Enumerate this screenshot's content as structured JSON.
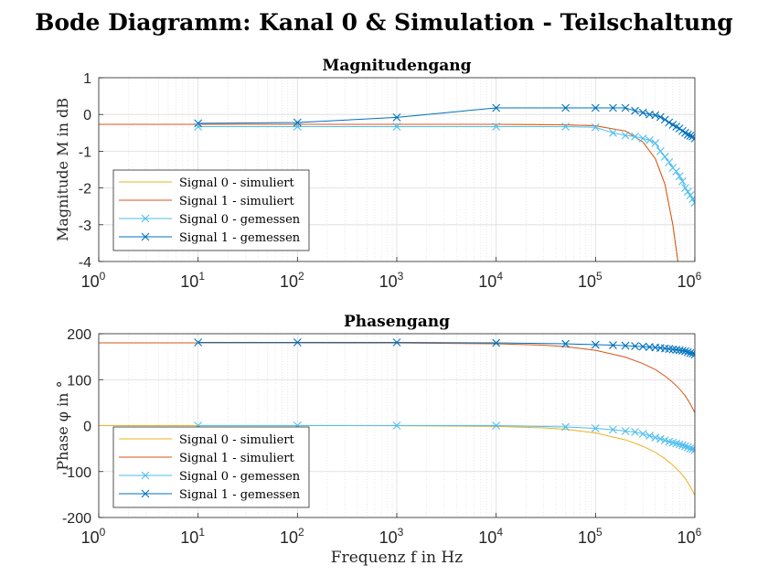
{
  "figure": {
    "title": "Bode Diagramm: Kanal 0 & Simulation - Teilschaltung"
  },
  "chart_data": [
    {
      "type": "line",
      "title": "Magnitudengang",
      "xlabel": "",
      "ylabel": "Magnitude M in dB",
      "xscale": "log",
      "xlim": [
        1,
        1000000
      ],
      "ylim": [
        -4,
        1
      ],
      "grid": true,
      "xticks": [
        "10^0",
        "10^1",
        "10^2",
        "10^3",
        "10^4",
        "10^5",
        "10^6"
      ],
      "yticks": [
        "1",
        "0",
        "-1",
        "-2",
        "-3",
        "-4"
      ],
      "legend_position": "bottom-left",
      "series": [
        {
          "name": "Signal 0 - simuliert",
          "color": "#EDB120",
          "marker": "none",
          "points": [
            [
              1,
              -0.27
            ],
            [
              100,
              -0.27
            ],
            [
              10000,
              -0.27
            ],
            [
              50000,
              -0.28
            ],
            [
              100000,
              -0.31
            ],
            [
              200000,
              -0.45
            ],
            [
              300000,
              -0.75
            ],
            [
              400000,
              -1.2
            ],
            [
              500000,
              -1.9
            ],
            [
              600000,
              -3.0
            ],
            [
              700000,
              -4.3
            ]
          ]
        },
        {
          "name": "Signal 1 - simuliert",
          "color": "#D95319",
          "marker": "none",
          "points": [
            [
              1,
              -0.27
            ],
            [
              100,
              -0.27
            ],
            [
              10000,
              -0.27
            ],
            [
              50000,
              -0.28
            ],
            [
              100000,
              -0.31
            ],
            [
              200000,
              -0.45
            ],
            [
              300000,
              -0.75
            ],
            [
              400000,
              -1.2
            ],
            [
              500000,
              -1.9
            ],
            [
              600000,
              -3.0
            ],
            [
              700000,
              -4.3
            ]
          ]
        },
        {
          "name": "Signal 0 - gemessen",
          "color": "#4DBEEE",
          "marker": "x",
          "points": [
            [
              10,
              -0.33
            ],
            [
              100,
              -0.33
            ],
            [
              1000,
              -0.33
            ],
            [
              10000,
              -0.33
            ],
            [
              50000,
              -0.33
            ],
            [
              100000,
              -0.35
            ],
            [
              150000,
              -0.5
            ],
            [
              200000,
              -0.57
            ],
            [
              250000,
              -0.6
            ],
            [
              300000,
              -0.65
            ],
            [
              350000,
              -0.7
            ],
            [
              400000,
              -0.78
            ],
            [
              450000,
              -1.0
            ],
            [
              500000,
              -1.15
            ],
            [
              550000,
              -1.3
            ],
            [
              600000,
              -1.45
            ],
            [
              650000,
              -1.55
            ],
            [
              700000,
              -1.68
            ],
            [
              750000,
              -1.82
            ],
            [
              800000,
              -2.0
            ],
            [
              850000,
              -2.1
            ],
            [
              900000,
              -2.2
            ],
            [
              950000,
              -2.3
            ],
            [
              1000000,
              -2.4
            ]
          ]
        },
        {
          "name": "Signal 1 - gemessen",
          "color": "#0072BD",
          "marker": "x",
          "points": [
            [
              10,
              -0.24
            ],
            [
              100,
              -0.22
            ],
            [
              1000,
              -0.08
            ],
            [
              10000,
              0.18
            ],
            [
              50000,
              0.18
            ],
            [
              100000,
              0.18
            ],
            [
              150000,
              0.18
            ],
            [
              200000,
              0.18
            ],
            [
              250000,
              0.1
            ],
            [
              300000,
              0.05
            ],
            [
              350000,
              0.0
            ],
            [
              400000,
              -0.02
            ],
            [
              450000,
              -0.07
            ],
            [
              500000,
              -0.14
            ],
            [
              550000,
              -0.22
            ],
            [
              600000,
              -0.28
            ],
            [
              650000,
              -0.33
            ],
            [
              700000,
              -0.38
            ],
            [
              750000,
              -0.45
            ],
            [
              800000,
              -0.5
            ],
            [
              850000,
              -0.55
            ],
            [
              900000,
              -0.58
            ],
            [
              950000,
              -0.6
            ],
            [
              1000000,
              -0.65
            ]
          ]
        }
      ]
    },
    {
      "type": "line",
      "title": "Phasengang",
      "xlabel": "Frequenz f in Hz",
      "ylabel": "Phase φ in °",
      "xscale": "log",
      "xlim": [
        1,
        1000000
      ],
      "ylim": [
        -200,
        200
      ],
      "grid": true,
      "xticks": [
        "10^0",
        "10^1",
        "10^2",
        "10^3",
        "10^4",
        "10^5",
        "10^6"
      ],
      "yticks": [
        "200",
        "100",
        "0",
        "-100",
        "-200"
      ],
      "legend_position": "bottom-left",
      "series": [
        {
          "name": "Signal 0 - simuliert",
          "color": "#EDB120",
          "marker": "none",
          "points": [
            [
              1,
              0
            ],
            [
              100,
              0
            ],
            [
              1000,
              -0.2
            ],
            [
              10000,
              -1.8
            ],
            [
              30000,
              -5
            ],
            [
              50000,
              -8
            ],
            [
              100000,
              -16
            ],
            [
              200000,
              -31
            ],
            [
              300000,
              -45
            ],
            [
              400000,
              -58
            ],
            [
              500000,
              -72
            ],
            [
              600000,
              -86
            ],
            [
              700000,
              -100
            ],
            [
              800000,
              -115
            ],
            [
              900000,
              -133
            ],
            [
              1000000,
              -152
            ]
          ]
        },
        {
          "name": "Signal 1 - simuliert",
          "color": "#D95319",
          "marker": "none",
          "points": [
            [
              1,
              180
            ],
            [
              100,
              180
            ],
            [
              1000,
              179.8
            ],
            [
              10000,
              178.2
            ],
            [
              30000,
              175
            ],
            [
              50000,
              172
            ],
            [
              100000,
              164
            ],
            [
              200000,
              149
            ],
            [
              300000,
              135
            ],
            [
              400000,
              122
            ],
            [
              500000,
              108
            ],
            [
              600000,
              94
            ],
            [
              700000,
              80
            ],
            [
              800000,
              65
            ],
            [
              900000,
              47
            ],
            [
              1000000,
              28
            ]
          ]
        },
        {
          "name": "Signal 0 - gemessen",
          "color": "#4DBEEE",
          "marker": "x",
          "points": [
            [
              10,
              0
            ],
            [
              100,
              0
            ],
            [
              1000,
              0
            ],
            [
              10000,
              0
            ],
            [
              50000,
              -3
            ],
            [
              100000,
              -6
            ],
            [
              150000,
              -9
            ],
            [
              200000,
              -12
            ],
            [
              250000,
              -14
            ],
            [
              300000,
              -18
            ],
            [
              350000,
              -22
            ],
            [
              400000,
              -26
            ],
            [
              450000,
              -29
            ],
            [
              500000,
              -32
            ],
            [
              550000,
              -35
            ],
            [
              600000,
              -37
            ],
            [
              650000,
              -39
            ],
            [
              700000,
              -41
            ],
            [
              750000,
              -43
            ],
            [
              800000,
              -45
            ],
            [
              850000,
              -47
            ],
            [
              900000,
              -50
            ],
            [
              950000,
              -51
            ],
            [
              1000000,
              -53
            ]
          ]
        },
        {
          "name": "Signal 1 - gemessen",
          "color": "#0072BD",
          "marker": "x",
          "points": [
            [
              10,
              181
            ],
            [
              100,
              181
            ],
            [
              1000,
              181
            ],
            [
              10000,
              180
            ],
            [
              50000,
              178
            ],
            [
              100000,
              176
            ],
            [
              150000,
              175
            ],
            [
              200000,
              174
            ],
            [
              250000,
              173
            ],
            [
              300000,
              172
            ],
            [
              350000,
              171
            ],
            [
              400000,
              170
            ],
            [
              450000,
              169
            ],
            [
              500000,
              168
            ],
            [
              550000,
              167
            ],
            [
              600000,
              166
            ],
            [
              650000,
              165
            ],
            [
              700000,
              164
            ],
            [
              750000,
              163
            ],
            [
              800000,
              162
            ],
            [
              850000,
              160
            ],
            [
              900000,
              158
            ],
            [
              950000,
              157
            ],
            [
              1000000,
              155
            ]
          ]
        }
      ]
    }
  ]
}
